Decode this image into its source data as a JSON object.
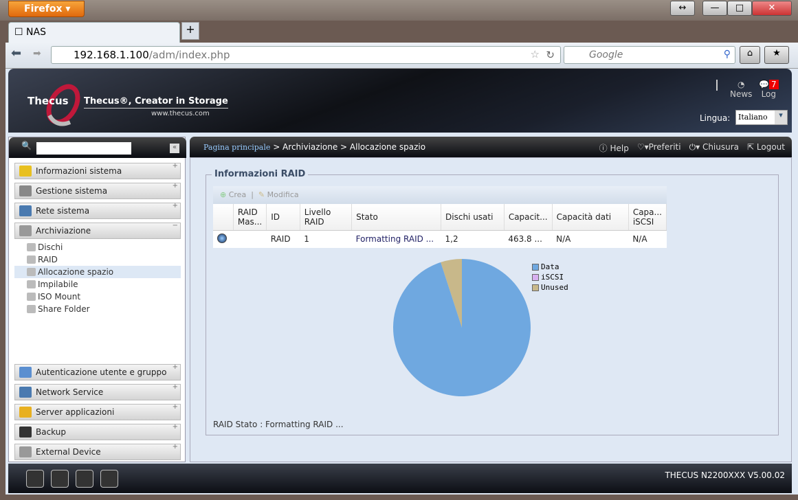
{
  "browser": {
    "app_button": "Firefox",
    "tab_title": "NAS",
    "new_tab": "+",
    "url_host": "192.168.1.100",
    "url_path": "/adm/index.php",
    "search_placeholder": "Google"
  },
  "header": {
    "logo": "Thecus",
    "slogan": "Thecus®, Creator in Storage",
    "website": "www.thecus.com",
    "news_label": "News",
    "log_label": "Log",
    "log_count": "7",
    "lingua_label": "Lingua:",
    "lingua_value": "Italiano"
  },
  "topbar": {
    "breadcrumb_home": "Pagina principale",
    "breadcrumb_rest": " > Archiviazione > Allocazione spazio",
    "help": "Help",
    "preferiti": "Preferiti",
    "chiusura": "Chiusura",
    "logout": "Logout"
  },
  "sidebar": {
    "sections_top": [
      {
        "label": "Informazioni sistema",
        "color": "#e8c020"
      },
      {
        "label": "Gestione sistema",
        "color": "#888"
      },
      {
        "label": "Rete sistema",
        "color": "#4a7ab0"
      },
      {
        "label": "Archiviazione",
        "color": "#999"
      }
    ],
    "sub_items": [
      {
        "label": "Dischi"
      },
      {
        "label": "RAID"
      },
      {
        "label": "Allocazione spazio",
        "selected": true
      },
      {
        "label": "Impilabile"
      },
      {
        "label": "ISO Mount"
      },
      {
        "label": "Share Folder"
      }
    ],
    "sections_bottom": [
      {
        "label": "Autenticazione utente e gruppo",
        "color": "#5b8fd0"
      },
      {
        "label": "Network Service",
        "color": "#4a7ab0"
      },
      {
        "label": "Server applicazioni",
        "color": "#e8b020"
      },
      {
        "label": "Backup",
        "color": "#333"
      },
      {
        "label": "External Device",
        "color": "#999"
      }
    ]
  },
  "main": {
    "fieldset_title": "Informazioni RAID",
    "toolbar": {
      "create": "Crea",
      "modify": "Modifica"
    },
    "columns": [
      "",
      "RAID Mas...",
      "ID",
      "Livello RAID",
      "Stato",
      "Dischi usati",
      "Capacit...",
      "Capacità dati",
      "Capa... iSCSI"
    ],
    "rows": [
      {
        "raid_master": "",
        "id": "RAID",
        "level": "1",
        "status": "Formatting RAID ...",
        "disks": "1,2",
        "capacity": "463.8 ...",
        "data_capacity": "N/A",
        "iscsi_capacity": "N/A"
      }
    ],
    "raid_status": "RAID Stato : Formatting RAID ..."
  },
  "chart_data": {
    "type": "pie",
    "legend_placement": "right",
    "slices": [
      {
        "name": "Data",
        "value": 95,
        "color": "#6fa8e0"
      },
      {
        "name": "iSCSI",
        "value": 0,
        "color": "#d8b0f0"
      },
      {
        "name": "Unused",
        "value": 5,
        "color": "#c8b88a"
      }
    ]
  },
  "footer": {
    "version": "THECUS N2200XXX V5.00.02"
  }
}
